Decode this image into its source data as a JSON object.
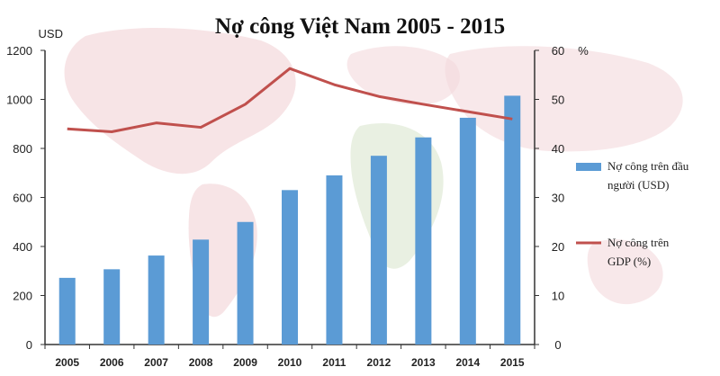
{
  "chart_data": {
    "type": "bar",
    "title": "Nợ công Việt Nam 2005 - 2015",
    "categories": [
      "2005",
      "2006",
      "2007",
      "2008",
      "2009",
      "2010",
      "2011",
      "2012",
      "2013",
      "2014",
      "2015"
    ],
    "y_left": {
      "unit": "USD",
      "ticks": [
        "0",
        "200",
        "400",
        "600",
        "800",
        "1000",
        "1200"
      ],
      "range": [
        0,
        1200
      ]
    },
    "y_right": {
      "unit": "%",
      "ticks": [
        "0",
        "10",
        "20",
        "30",
        "40",
        "50",
        "60"
      ],
      "range": [
        0,
        60
      ]
    },
    "series": [
      {
        "name_lines": [
          "Nợ công trên đầu",
          "người (USD)"
        ],
        "type": "bar",
        "axis": "left",
        "color": "#5b9bd5",
        "values": [
          272,
          307,
          363,
          428,
          500,
          630,
          690,
          770,
          845,
          925,
          1015
        ]
      },
      {
        "name_lines": [
          "Nợ công trên",
          "GDP (%)"
        ],
        "type": "line",
        "axis": "right",
        "color": "#c0504d",
        "values": [
          44,
          43.4,
          45.2,
          44.3,
          49,
          56.3,
          53,
          50.6,
          49,
          47.5,
          46
        ]
      }
    ],
    "grid": false,
    "legend_position": "right"
  }
}
